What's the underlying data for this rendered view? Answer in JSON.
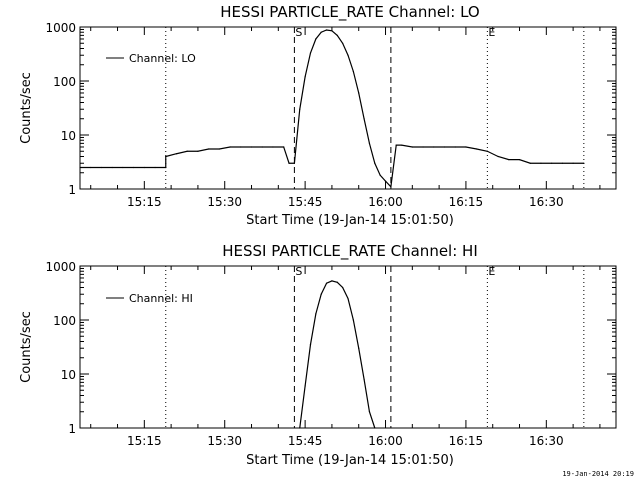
{
  "footer": {
    "timestamp": "19-Jan-2014 20:19"
  },
  "chart_data": [
    {
      "type": "line",
      "title": "HESSI PARTICLE_RATE Channel: LO",
      "xlabel": "Start Time (19-Jan-14 15:01:50)",
      "ylabel": "Counts/sec",
      "y_scale": "log",
      "ylim": [
        1,
        1000
      ],
      "xlim": [
        "15:03",
        "16:43"
      ],
      "x_ticks": [
        "15:15",
        "15:30",
        "15:45",
        "16:00",
        "16:15",
        "16:30"
      ],
      "y_ticks": [
        "1",
        "10",
        "100",
        "1000"
      ],
      "legend": {
        "position": "top-left",
        "entries": [
          "Channel: LO"
        ]
      },
      "markers": [
        {
          "label": "S",
          "time": "15:43"
        },
        {
          "label": "E",
          "time": "16:19"
        }
      ],
      "dashed_lines": [
        "15:43",
        "16:01"
      ],
      "dotted_lines": [
        "15:19",
        "16:19",
        "16:37"
      ],
      "series": [
        {
          "name": "Channel: LO",
          "x": [
            "15:03",
            "15:05",
            "15:07",
            "15:09",
            "15:11",
            "15:13",
            "15:15",
            "15:17",
            "15:19",
            "15:19",
            "15:21",
            "15:23",
            "15:25",
            "15:27",
            "15:29",
            "15:31",
            "15:33",
            "15:35",
            "15:37",
            "15:39",
            "15:41",
            "15:42",
            "15:43",
            "15:44",
            "15:45",
            "15:46",
            "15:47",
            "15:48",
            "15:49",
            "15:50",
            "15:51",
            "15:52",
            "15:53",
            "15:54",
            "15:55",
            "15:56",
            "15:57",
            "15:58",
            "15:59",
            "16:00",
            "16:01",
            "16:02",
            "16:03",
            "16:05",
            "16:07",
            "16:09",
            "16:11",
            "16:13",
            "16:15",
            "16:17",
            "16:19",
            "16:21",
            "16:23",
            "16:25",
            "16:27",
            "16:29",
            "16:31",
            "16:33",
            "16:35",
            "16:37"
          ],
          "values": [
            2.5,
            2.5,
            2.5,
            2.5,
            2.5,
            2.5,
            2.5,
            2.5,
            2.5,
            4.0,
            4.5,
            5.0,
            5.0,
            5.5,
            5.5,
            6.0,
            6.0,
            6.0,
            6.0,
            6.0,
            6.0,
            3.0,
            3.0,
            30,
            120,
            330,
            600,
            800,
            880,
            850,
            700,
            500,
            300,
            150,
            60,
            20,
            7,
            3,
            1.8,
            1.4,
            1.1,
            6.5,
            6.5,
            6.0,
            6.0,
            6.0,
            6.0,
            6.0,
            6.0,
            5.5,
            5.0,
            4.0,
            3.5,
            3.5,
            3.0,
            3.0,
            3.0,
            3.0,
            3.0,
            3.0
          ]
        }
      ]
    },
    {
      "type": "line",
      "title": "HESSI PARTICLE_RATE Channel: HI",
      "xlabel": "Start Time (19-Jan-14 15:01:50)",
      "ylabel": "Counts/sec",
      "y_scale": "log",
      "ylim": [
        1,
        1000
      ],
      "xlim": [
        "15:03",
        "16:43"
      ],
      "x_ticks": [
        "15:15",
        "15:30",
        "15:45",
        "16:00",
        "16:15",
        "16:30"
      ],
      "y_ticks": [
        "1",
        "10",
        "100",
        "1000"
      ],
      "legend": {
        "position": "top-left",
        "entries": [
          "Channel: HI"
        ]
      },
      "markers": [
        {
          "label": "S",
          "time": "15:43"
        },
        {
          "label": "E",
          "time": "16:19"
        }
      ],
      "dashed_lines": [
        "15:43",
        "16:01"
      ],
      "dotted_lines": [
        "15:19",
        "16:19",
        "16:37"
      ],
      "series": [
        {
          "name": "Channel: HI",
          "x": [
            "15:44",
            "15:45",
            "15:46",
            "15:47",
            "15:48",
            "15:49",
            "15:50",
            "15:51",
            "15:52",
            "15:53",
            "15:54",
            "15:55",
            "15:56",
            "15:57",
            "15:58"
          ],
          "values": [
            1.0,
            6,
            35,
            130,
            300,
            480,
            530,
            500,
            400,
            250,
            100,
            30,
            8,
            2,
            1.0
          ]
        }
      ]
    }
  ]
}
